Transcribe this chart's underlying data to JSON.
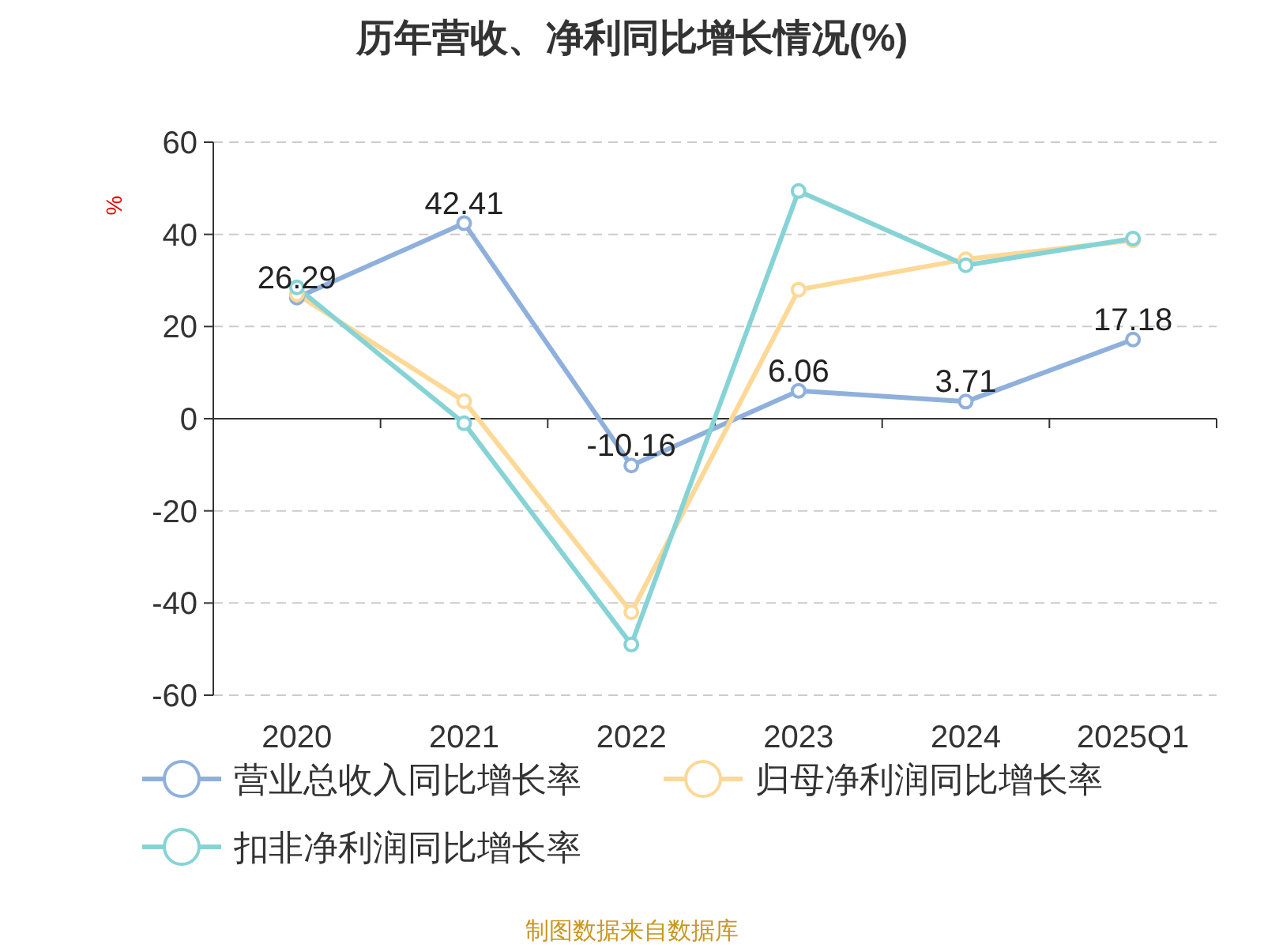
{
  "chart_data": {
    "type": "line",
    "title": "历年营收、净利同比增长情况(%)",
    "ylabel": "%",
    "categories": [
      "2020",
      "2021",
      "2022",
      "2023",
      "2024",
      "2025Q1"
    ],
    "series": [
      {
        "name": "营业总收入同比增长率",
        "color": "#8fb0dc",
        "values": [
          26.29,
          42.41,
          -10.16,
          6.06,
          3.71,
          17.18
        ],
        "value_labels": [
          "26.29",
          "42.41",
          "-10.16",
          "6.06",
          "3.71",
          "17.18"
        ]
      },
      {
        "name": "归母净利润同比增长率",
        "color": "#fdd896",
        "values": [
          27,
          3.8,
          -42,
          28,
          34.6,
          38.7
        ]
      },
      {
        "name": "扣非净利润同比增长率",
        "color": "#86d3d6",
        "values": [
          28.5,
          -1,
          -49,
          49.4,
          33.3,
          39.1
        ]
      }
    ],
    "ylim": [
      -60,
      60
    ],
    "yticks": [
      -60,
      -40,
      -20,
      0,
      20,
      40,
      60
    ],
    "grid": "y",
    "legend": "bottom",
    "marker": "circle",
    "line_style": "solid",
    "annotations": [
      "制图数据来自数据库"
    ]
  }
}
